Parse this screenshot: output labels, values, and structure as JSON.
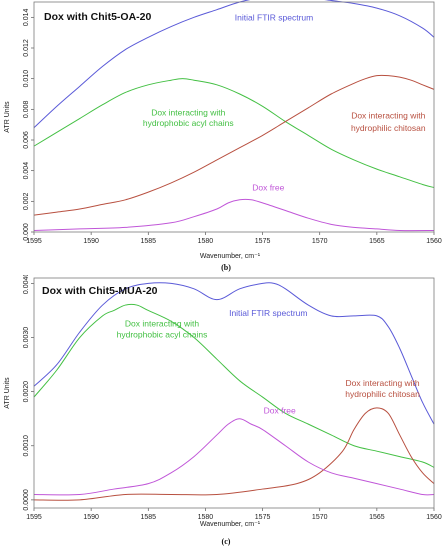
{
  "chart_data": [
    {
      "type": "line",
      "title": "Dox with Chit5-OA-20",
      "panel_label": "(b)",
      "xlabel": "Wavenumber, cm⁻¹",
      "ylabel": "ATR Units",
      "xlim": [
        1595,
        1560
      ],
      "ylim": [
        0,
        0.015
      ],
      "x_ticks": [
        {
          "value": 1595,
          "label": "1595"
        },
        {
          "value": 1590,
          "label": "1590"
        },
        {
          "value": 1585,
          "label": "1585"
        },
        {
          "value": 1580,
          "label": "1580"
        },
        {
          "value": 1575,
          "label": "1575"
        },
        {
          "value": 1570,
          "label": "1570"
        },
        {
          "value": 1565,
          "label": "1565"
        },
        {
          "value": 1560,
          "label": "1560"
        }
      ],
      "y_ticks": [
        {
          "value": 0,
          "label": "0.000"
        },
        {
          "value": 0.002,
          "label": "0.002"
        },
        {
          "value": 0.004,
          "label": "0.004"
        },
        {
          "value": 0.006,
          "label": "0.006"
        },
        {
          "value": 0.008,
          "label": "0.008"
        },
        {
          "value": 0.01,
          "label": "0.010"
        },
        {
          "value": 0.012,
          "label": "0.012"
        },
        {
          "value": 0.014,
          "label": "0.014"
        }
      ],
      "grid": false,
      "series": [
        {
          "color": "#5a5ad8",
          "x": [
            1595,
            1593,
            1591,
            1589,
            1587,
            1585,
            1583,
            1581,
            1579,
            1577,
            1575,
            1573,
            1571,
            1569,
            1567,
            1565,
            1563,
            1561,
            1560
          ],
          "y": [
            0.0068,
            0.0082,
            0.0095,
            0.0108,
            0.0119,
            0.0127,
            0.0134,
            0.014,
            0.0145,
            0.015,
            0.0153,
            0.0154,
            0.0153,
            0.0151,
            0.0149,
            0.0146,
            0.0141,
            0.0133,
            0.0127
          ]
        },
        {
          "color": "#44c044",
          "x": [
            1595,
            1593,
            1591,
            1589,
            1587,
            1585,
            1583,
            1582,
            1581,
            1579,
            1577,
            1575,
            1573,
            1571,
            1569,
            1567,
            1565,
            1563,
            1561,
            1560
          ],
          "y": [
            0.0056,
            0.0065,
            0.0074,
            0.0083,
            0.0091,
            0.0096,
            0.0099,
            0.01,
            0.0099,
            0.0096,
            0.009,
            0.0082,
            0.0072,
            0.0063,
            0.0054,
            0.0047,
            0.0041,
            0.0036,
            0.0031,
            0.0029
          ]
        },
        {
          "color": "#b85040",
          "x": [
            1595,
            1593,
            1591,
            1589,
            1587,
            1585,
            1583,
            1581,
            1579,
            1577,
            1575,
            1573,
            1571,
            1569,
            1567,
            1566,
            1565,
            1564,
            1563,
            1562,
            1561,
            1560
          ],
          "y": [
            0.0011,
            0.0013,
            0.0015,
            0.0018,
            0.0021,
            0.0026,
            0.0032,
            0.0039,
            0.0047,
            0.0055,
            0.0063,
            0.0072,
            0.0081,
            0.009,
            0.0097,
            0.01,
            0.0102,
            0.0102,
            0.0101,
            0.0099,
            0.0096,
            0.0093
          ]
        },
        {
          "color": "#c056d8",
          "x": [
            1595,
            1591,
            1587,
            1583,
            1581,
            1579,
            1578,
            1577,
            1576,
            1575,
            1573,
            1571,
            1569,
            1567,
            1565,
            1563,
            1560
          ],
          "y": [
            0.0001,
            0.0002,
            0.0003,
            0.0006,
            0.001,
            0.0015,
            0.0019,
            0.0021,
            0.0021,
            0.0019,
            0.0014,
            0.0009,
            0.0005,
            0.0003,
            0.0002,
            0.0001,
            0.0001
          ]
        }
      ],
      "annotations": [
        {
          "text": "Initial FTIR spectrum",
          "color": "#5a5ad8",
          "x": 1574,
          "y": 0.0138,
          "box": false
        },
        {
          "text": "Dox interacting with",
          "color": "#44c044",
          "x": 1581.5,
          "y": 0.0076,
          "box": false
        },
        {
          "text": "hydrophobic acyl chains",
          "color": "#44c044",
          "x": 1581.5,
          "y": 0.0069,
          "box": false
        },
        {
          "text": "Dox interacting with",
          "color": "#b85040",
          "x": 1564,
          "y": 0.0074,
          "box": true
        },
        {
          "text": "hydrophilic chitosan",
          "color": "#b85040",
          "x": 1564,
          "y": 0.0066,
          "box": true
        },
        {
          "text": "Dox free",
          "color": "#c056d8",
          "x": 1574.5,
          "y": 0.0027,
          "box": false
        }
      ]
    },
    {
      "type": "line",
      "title": "Dox with Chit5-MUA-20",
      "panel_label": "(c)",
      "xlabel": "Wavenumber, cm⁻¹",
      "ylabel": "ATR Units",
      "xlim": [
        1595,
        1560
      ],
      "ylim": [
        -0.00015,
        0.0041
      ],
      "x_ticks": [
        {
          "value": 1595,
          "label": "1595"
        },
        {
          "value": 1590,
          "label": "1590"
        },
        {
          "value": 1585,
          "label": "1585"
        },
        {
          "value": 1580,
          "label": "1580"
        },
        {
          "value": 1575,
          "label": "1575"
        },
        {
          "value": 1570,
          "label": "1570"
        },
        {
          "value": 1565,
          "label": "1565"
        },
        {
          "value": 1560,
          "label": "1560"
        }
      ],
      "y_ticks": [
        {
          "value": 0,
          "label": "0.0000"
        },
        {
          "value": 0.001,
          "label": "0.0010"
        },
        {
          "value": 0.002,
          "label": "0.0020"
        },
        {
          "value": 0.003,
          "label": "0.0030"
        },
        {
          "value": 0.004,
          "label": "0.0040"
        }
      ],
      "grid": false,
      "series": [
        {
          "color": "#5a5ad8",
          "x": [
            1595,
            1593,
            1591,
            1589,
            1587,
            1585,
            1583,
            1581,
            1579,
            1577,
            1575,
            1574,
            1573,
            1571,
            1569,
            1567,
            1565,
            1564,
            1563,
            1562,
            1561,
            1560
          ],
          "y": [
            0.0021,
            0.0025,
            0.0031,
            0.0036,
            0.0039,
            0.004,
            0.004,
            0.0039,
            0.0037,
            0.0039,
            0.004,
            0.004,
            0.0039,
            0.0036,
            0.0034,
            0.0034,
            0.0034,
            0.0032,
            0.0028,
            0.0023,
            0.0018,
            0.0014
          ]
        },
        {
          "color": "#44c044",
          "x": [
            1595,
            1593,
            1591,
            1589,
            1588,
            1587,
            1586,
            1585,
            1583,
            1581,
            1579,
            1577,
            1575,
            1573,
            1571,
            1569,
            1567,
            1565,
            1563,
            1561,
            1560
          ],
          "y": [
            0.0019,
            0.0024,
            0.003,
            0.0034,
            0.0035,
            0.0036,
            0.0036,
            0.0035,
            0.0033,
            0.003,
            0.0026,
            0.0022,
            0.0019,
            0.0016,
            0.0014,
            0.0012,
            0.001,
            0.0009,
            0.0008,
            0.0007,
            0.0006
          ]
        },
        {
          "color": "#b85040",
          "x": [
            1595,
            1591,
            1587,
            1583,
            1579,
            1575,
            1572,
            1570,
            1568,
            1567,
            1566,
            1565,
            1564,
            1563,
            1562,
            1561,
            1560
          ],
          "y": [
            0.0,
            0.0,
            0.0001,
            0.0001,
            0.0001,
            0.0002,
            0.0003,
            0.0005,
            0.0009,
            0.0013,
            0.0016,
            0.0017,
            0.0016,
            0.0012,
            0.0008,
            0.0005,
            0.0003
          ]
        },
        {
          "color": "#c056d8",
          "x": [
            1595,
            1591,
            1588,
            1585,
            1583,
            1581,
            1579,
            1578,
            1577,
            1576,
            1575,
            1573,
            1571,
            1569,
            1567,
            1565,
            1563,
            1561,
            1560
          ],
          "y": [
            0.0001,
            0.0001,
            0.0002,
            0.0003,
            0.0005,
            0.0008,
            0.0012,
            0.0014,
            0.0015,
            0.0014,
            0.0013,
            0.001,
            0.0007,
            0.0005,
            0.0004,
            0.0003,
            0.0002,
            0.0001,
            0.0001
          ]
        }
      ],
      "annotations": [
        {
          "text": "Initial FTIR spectrum",
          "color": "#5a5ad8",
          "x": 1574.5,
          "y": 0.0034,
          "box": false
        },
        {
          "text": "Dox interacting with",
          "color": "#44c044",
          "x": 1583.8,
          "y": 0.0032,
          "box": false
        },
        {
          "text": "hydrophobic acyl chains",
          "color": "#44c044",
          "x": 1583.8,
          "y": 0.003,
          "box": false
        },
        {
          "text": "Dox interacting with",
          "color": "#b85040",
          "x": 1564.5,
          "y": 0.0021,
          "box": false
        },
        {
          "text": "hydrophilic chitosan",
          "color": "#b85040",
          "x": 1564.5,
          "y": 0.0019,
          "box": false
        },
        {
          "text": "Dox free",
          "color": "#c056d8",
          "x": 1573.5,
          "y": 0.0016,
          "box": false
        }
      ]
    }
  ]
}
